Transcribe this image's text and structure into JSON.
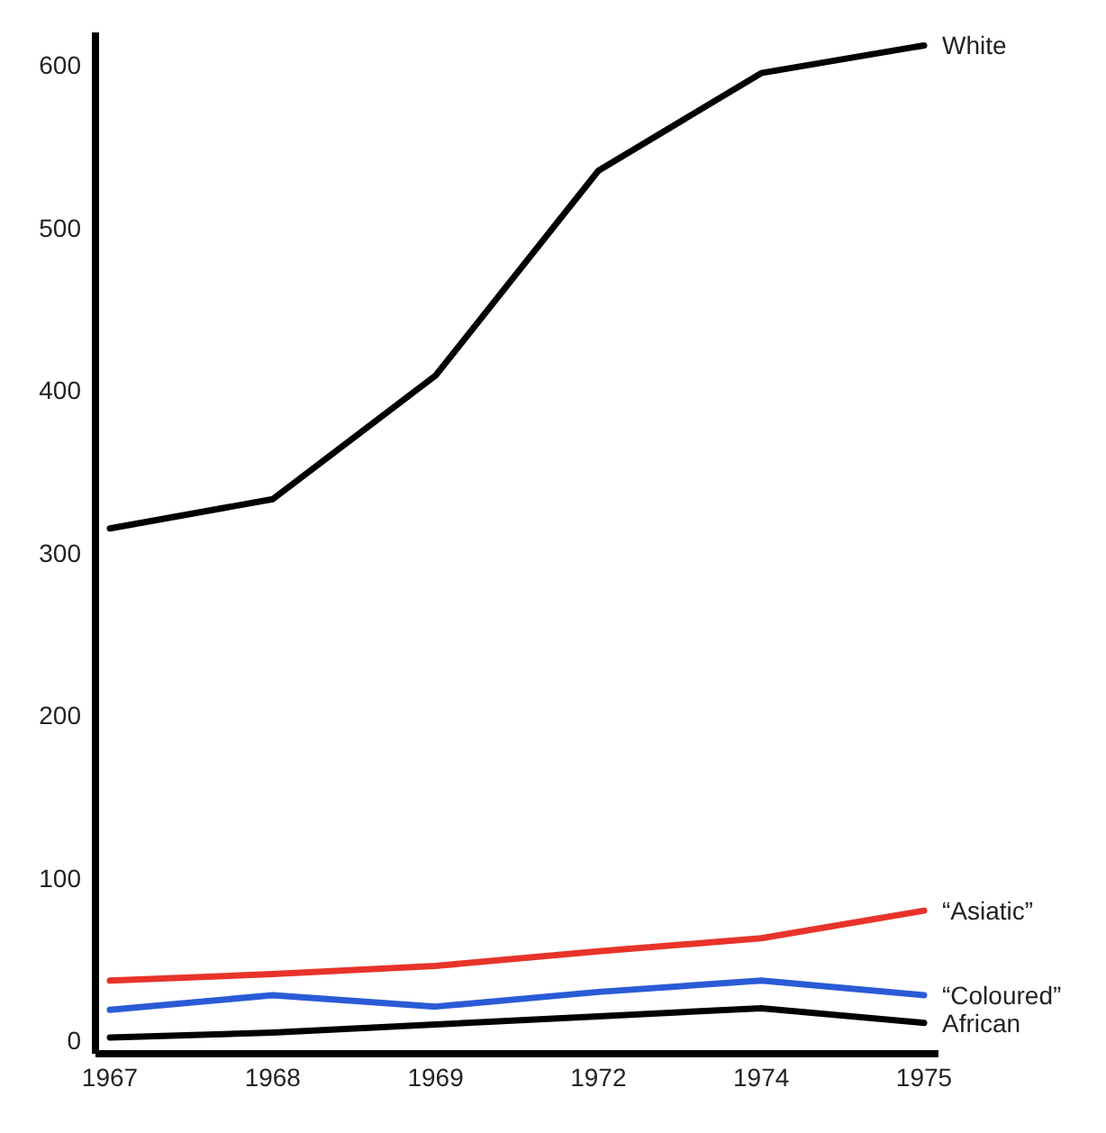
{
  "chart_data": {
    "type": "line",
    "categories": [
      "1967",
      "1968",
      "1969",
      "1972",
      "1974",
      "1975"
    ],
    "series": [
      {
        "name": "White",
        "color": "#000000",
        "values": [
          315,
          333,
          409,
          535,
          595,
          612
        ]
      },
      {
        "name": "“Asiatic”",
        "color": "#e8332a",
        "values": [
          37,
          41,
          46,
          55,
          63,
          80
        ]
      },
      {
        "name": "“Coloured”",
        "color": "#2a5bd7",
        "values": [
          19,
          28,
          21,
          30,
          37,
          28
        ]
      },
      {
        "name": "African",
        "color": "#000000",
        "values": [
          2,
          5,
          10,
          15,
          20,
          11
        ]
      }
    ],
    "ylim": [
      -8,
      620
    ],
    "yticks": [
      0,
      100,
      200,
      300,
      400,
      500,
      600
    ],
    "grid": false,
    "legend": false,
    "marker": "none",
    "line_style": "solid"
  }
}
